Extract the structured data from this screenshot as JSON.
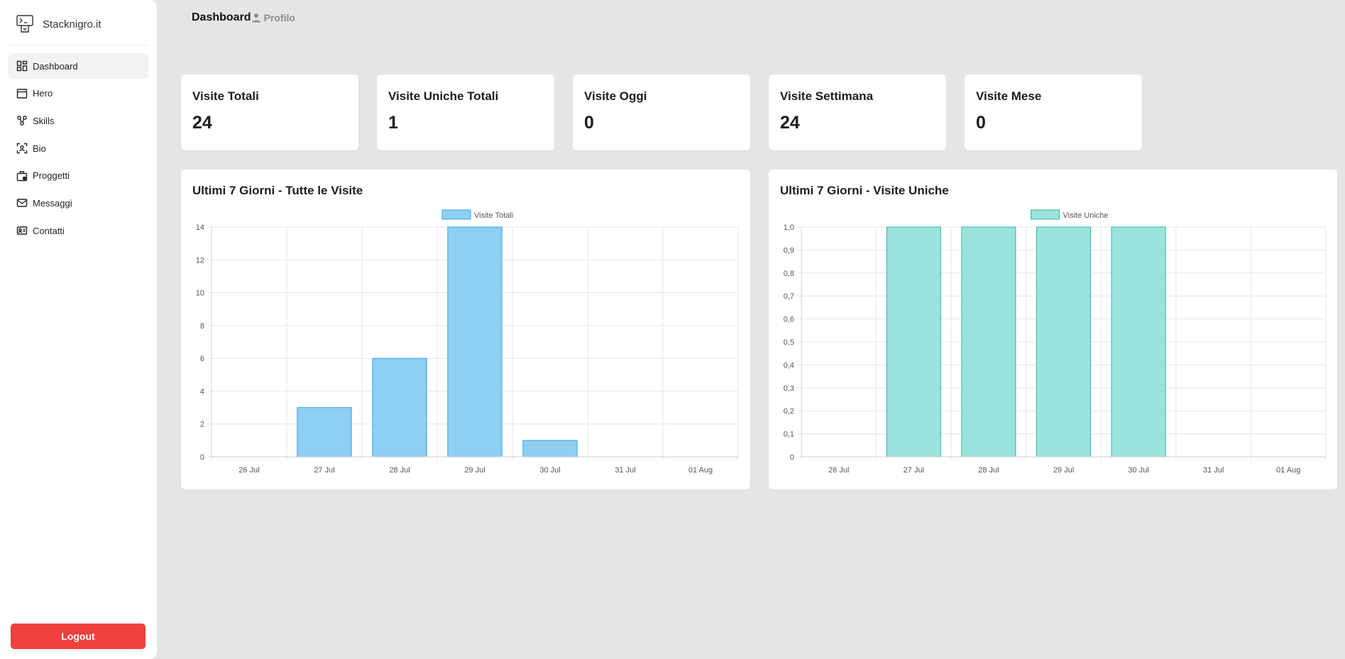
{
  "brand": {
    "name": "Stacknigro.it"
  },
  "sidebar": {
    "items": [
      {
        "label": "Dashboard",
        "icon": "dashboard-icon",
        "active": true
      },
      {
        "label": "Hero",
        "icon": "hero-icon",
        "active": false
      },
      {
        "label": "Skills",
        "icon": "skills-icon",
        "active": false
      },
      {
        "label": "Bio",
        "icon": "bio-icon",
        "active": false
      },
      {
        "label": "Proggetti",
        "icon": "briefcase-icon",
        "active": false
      },
      {
        "label": "Messaggi",
        "icon": "mail-icon",
        "active": false
      },
      {
        "label": "Contatti",
        "icon": "contact-card-icon",
        "active": false
      }
    ],
    "logout_label": "Logout"
  },
  "topnav": {
    "dashboard": "Dashboard",
    "profile": "Profilo"
  },
  "stats": [
    {
      "label": "Visite Totali",
      "value": "24"
    },
    {
      "label": "Visite Uniche Totali",
      "value": "1"
    },
    {
      "label": "Visite Oggi",
      "value": "0"
    },
    {
      "label": "Visite Settimana",
      "value": "24"
    },
    {
      "label": "Visite Mese",
      "value": "0"
    }
  ],
  "colors": {
    "logout": "#f04040",
    "series_total_fill": "#8ecff2",
    "series_total_stroke": "#36a2eb",
    "series_unique_fill": "#9be3dc",
    "series_unique_stroke": "#2fb5ab"
  },
  "chart_data": [
    {
      "type": "bar",
      "title": "Ultimi 7 Giorni - Tutte le Visite",
      "categories": [
        "26 Jul",
        "27 Jul",
        "28 Jul",
        "29 Jul",
        "30 Jul",
        "31 Jul",
        "01 Aug"
      ],
      "series": [
        {
          "name": "Visite Totali",
          "values": [
            0,
            3,
            6,
            14,
            1,
            0,
            0
          ]
        }
      ],
      "ylim": [
        0,
        14
      ],
      "yticks": [
        "0",
        "2",
        "4",
        "6",
        "8",
        "10",
        "12",
        "14"
      ],
      "legend": "top-center",
      "grid": true
    },
    {
      "type": "bar",
      "title": "Ultimi 7 Giorni - Visite Uniche",
      "categories": [
        "26 Jul",
        "27 Jul",
        "28 Jul",
        "29 Jul",
        "30 Jul",
        "31 Jul",
        "01 Aug"
      ],
      "series": [
        {
          "name": "Visite Uniche",
          "values": [
            0,
            1,
            1,
            1,
            1,
            0,
            0
          ]
        }
      ],
      "ylim": [
        0,
        1
      ],
      "yticks": [
        "0",
        "0,1",
        "0,2",
        "0,3",
        "0,4",
        "0,5",
        "0,6",
        "0,7",
        "0,8",
        "0,9",
        "1,0"
      ],
      "legend": "top-center",
      "grid": true
    }
  ]
}
